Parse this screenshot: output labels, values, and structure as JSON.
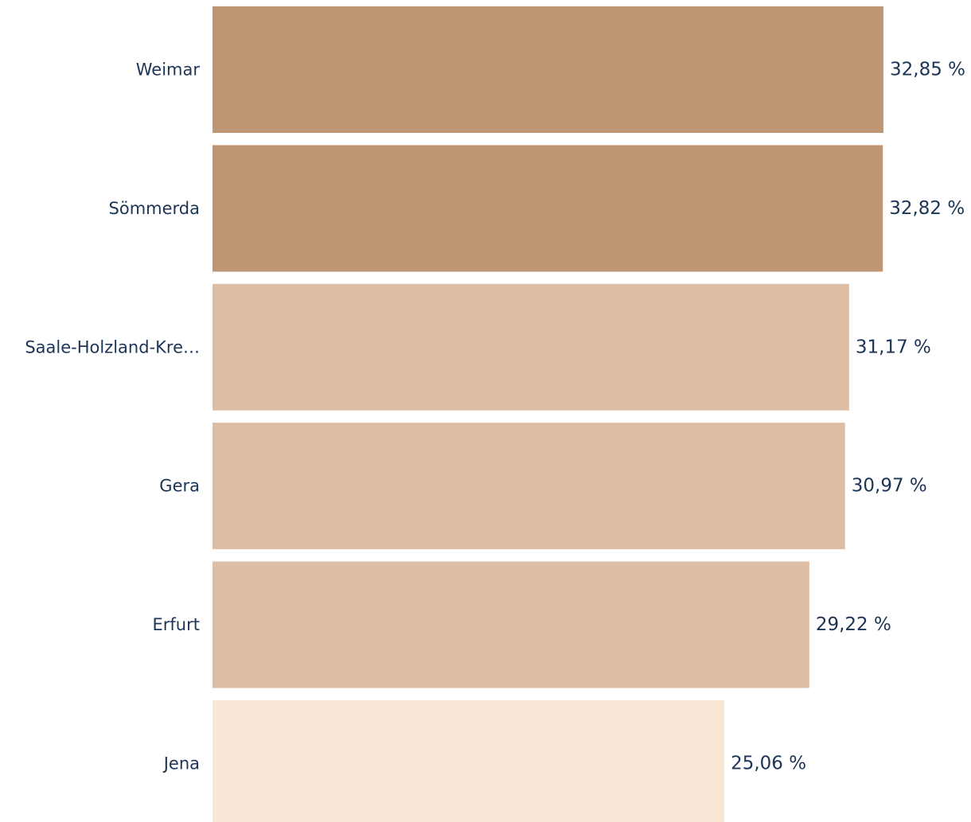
{
  "chart_data": {
    "type": "bar",
    "orientation": "horizontal",
    "categories": [
      "Weimar",
      "Sömmerda",
      "Saale-Holzland-Kre…",
      "Gera",
      "Erfurt",
      "Jena"
    ],
    "values": [
      32.85,
      32.82,
      31.17,
      30.97,
      29.22,
      25.06
    ],
    "value_labels": [
      "32,85 %",
      "32,82 %",
      "31,17 %",
      "30,97 %",
      "29,22 %",
      "25,06 %"
    ],
    "bar_colors": [
      "#bf9673",
      "#bf9673",
      "#ddbea4",
      "#ddbea4",
      "#ddbea4",
      "#f9e6d5"
    ],
    "xlim": [
      0,
      32.85
    ],
    "title": "",
    "xlabel": "",
    "ylabel": "",
    "grid": false,
    "legend": "none"
  },
  "colors": {
    "text": "#1c3557",
    "background": "#ffffff"
  }
}
